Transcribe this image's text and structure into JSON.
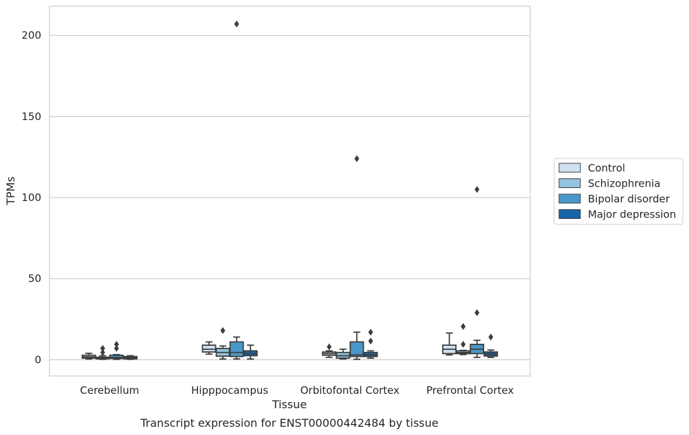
{
  "chart_data": {
    "type": "boxplot",
    "title": "",
    "caption": "Transcript expression for ENST00000442484 by tissue",
    "xlabel": "Tissue",
    "ylabel": "TPMs",
    "ylim": [
      -10,
      218
    ],
    "yticks": [
      0,
      50,
      100,
      150,
      200
    ],
    "grid": "horizontal",
    "legend_position": "right",
    "categories": [
      "Cerebellum",
      "Hipppocampus",
      "Orbitofontal Cortex",
      "Prefrontal Cortex"
    ],
    "series": [
      {
        "name": "Control",
        "color": "#d0e1f2",
        "boxes": [
          {
            "whisker_low": 0.5,
            "q1": 1.0,
            "median": 1.8,
            "q3": 2.8,
            "whisker_high": 4.0,
            "outliers": []
          },
          {
            "whisker_low": 3.5,
            "q1": 4.8,
            "median": 6.5,
            "q3": 9.0,
            "whisker_high": 11.0,
            "outliers": []
          },
          {
            "whisker_low": 1.5,
            "q1": 2.8,
            "median": 3.8,
            "q3": 4.8,
            "whisker_high": 5.5,
            "outliers": [
              8.0
            ]
          },
          {
            "whisker_low": 3.0,
            "q1": 3.8,
            "median": 6.5,
            "q3": 9.0,
            "whisker_high": 16.5,
            "outliers": []
          }
        ]
      },
      {
        "name": "Schizophrenia",
        "color": "#94c4df",
        "boxes": [
          {
            "whisker_low": 0.3,
            "q1": 0.6,
            "median": 1.0,
            "q3": 1.6,
            "whisker_high": 2.5,
            "outliers": [
              4.5,
              7.0
            ]
          },
          {
            "whisker_low": 0.5,
            "q1": 2.2,
            "median": 4.5,
            "q3": 7.0,
            "whisker_high": 8.5,
            "outliers": [
              18.0
            ]
          },
          {
            "whisker_low": 0.5,
            "q1": 1.0,
            "median": 2.5,
            "q3": 4.5,
            "whisker_high": 6.5,
            "outliers": []
          },
          {
            "whisker_low": 3.2,
            "q1": 3.8,
            "median": 4.5,
            "q3": 5.5,
            "whisker_high": 5.8,
            "outliers": [
              9.5,
              20.5
            ]
          }
        ]
      },
      {
        "name": "Bipolar disorder",
        "color": "#4a98c9",
        "boxes": [
          {
            "whisker_low": 0.3,
            "q1": 0.8,
            "median": 1.4,
            "q3": 2.8,
            "whisker_high": 3.2,
            "outliers": [
              7.0,
              9.5
            ]
          },
          {
            "whisker_low": 0.5,
            "q1": 2.0,
            "median": 4.5,
            "q3": 11.0,
            "whisker_high": 14.0,
            "outliers": [
              207.0
            ]
          },
          {
            "whisker_low": 0.3,
            "q1": 2.0,
            "median": 3.0,
            "q3": 11.0,
            "whisker_high": 17.0,
            "outliers": [
              124.0
            ]
          },
          {
            "whisker_low": 1.5,
            "q1": 3.8,
            "median": 6.5,
            "q3": 9.5,
            "whisker_high": 12.0,
            "outliers": [
              29.0,
              105.0
            ]
          }
        ]
      },
      {
        "name": "Major depression",
        "color": "#1764ab",
        "boxes": [
          {
            "whisker_low": 0.3,
            "q1": 0.6,
            "median": 1.2,
            "q3": 2.0,
            "whisker_high": 2.5,
            "outliers": []
          },
          {
            "whisker_low": 0.5,
            "q1": 2.5,
            "median": 3.8,
            "q3": 5.5,
            "whisker_high": 9.0,
            "outliers": []
          },
          {
            "whisker_low": 1.0,
            "q1": 2.0,
            "median": 3.0,
            "q3": 4.5,
            "whisker_high": 5.5,
            "outliers": [
              11.5,
              17.0
            ]
          },
          {
            "whisker_low": 1.5,
            "q1": 2.3,
            "median": 3.5,
            "q3": 4.8,
            "whisker_high": 6.0,
            "outliers": [
              14.0
            ]
          }
        ]
      }
    ]
  }
}
